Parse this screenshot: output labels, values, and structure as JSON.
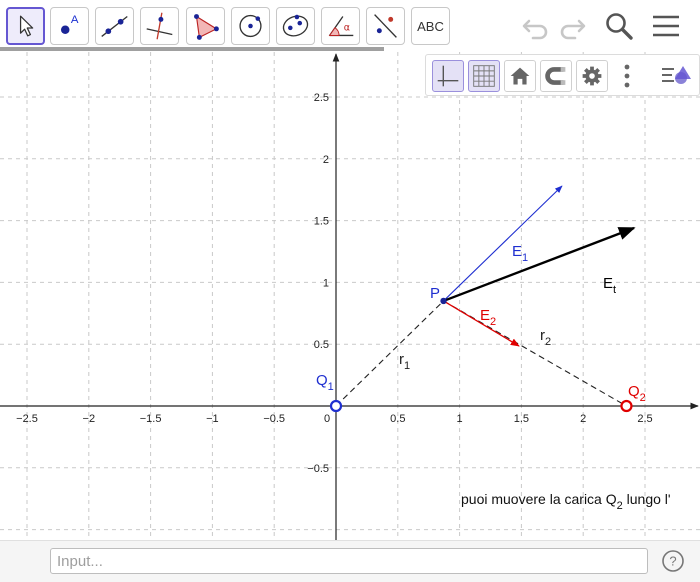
{
  "toolbar": {
    "tools": [
      {
        "name": "move-tool"
      },
      {
        "name": "point-tool",
        "text": "A"
      },
      {
        "name": "line-tool"
      },
      {
        "name": "perpendicular-line-tool"
      },
      {
        "name": "polygon-tool"
      },
      {
        "name": "circle-tool"
      },
      {
        "name": "ellipse-tool"
      },
      {
        "name": "angle-tool",
        "text": "α"
      },
      {
        "name": "reflect-tool"
      },
      {
        "name": "text-tool",
        "text": "ABC"
      }
    ],
    "icons": [
      "undo-icon",
      "redo-icon",
      "search-icon",
      "menu-icon"
    ]
  },
  "style_bar": {
    "buttons": [
      "axes-icon",
      "grid-icon",
      "home-icon",
      "magnet-icon",
      "gear-icon",
      "more-icon",
      "style-bar-toggle-icon"
    ]
  },
  "graphics": {
    "x_axis_ticks": [
      "−2.5",
      "−2",
      "−1.5",
      "−1",
      "−0.5",
      "0",
      "0.5",
      "1",
      "1.5",
      "2",
      "2.5"
    ],
    "y_axis_ticks": [
      "2.5",
      "2",
      "1.5",
      "1",
      "0.5",
      "−0.5"
    ],
    "points": {
      "Q1": {
        "label": "Q",
        "sub": "1",
        "x": 0,
        "y": 0,
        "color": "#1f2fd0"
      },
      "Q2": {
        "label": "Q",
        "sub": "2",
        "x": 2.35,
        "y": 0,
        "color": "#e00000"
      },
      "P": {
        "label": "P",
        "x": 0.87,
        "y": 0.85,
        "color": "#1f2fd0"
      }
    },
    "vectors": {
      "E1": {
        "label": "E",
        "sub": "1",
        "color": "#1f2fd0"
      },
      "E2": {
        "label": "E",
        "sub": "2",
        "color": "#e00000"
      },
      "Et": {
        "label": "E",
        "sub": "t",
        "color": "#000000"
      }
    },
    "segments": {
      "r1": {
        "label": "r",
        "sub": "1"
      },
      "r2": {
        "label": "r",
        "sub": "2"
      }
    },
    "note": {
      "text": "puoi muovere la carica Q",
      "sub": "2",
      "tail": " lungo l'"
    }
  },
  "input": {
    "placeholder": "Input..."
  },
  "help": {
    "label": "?"
  }
}
